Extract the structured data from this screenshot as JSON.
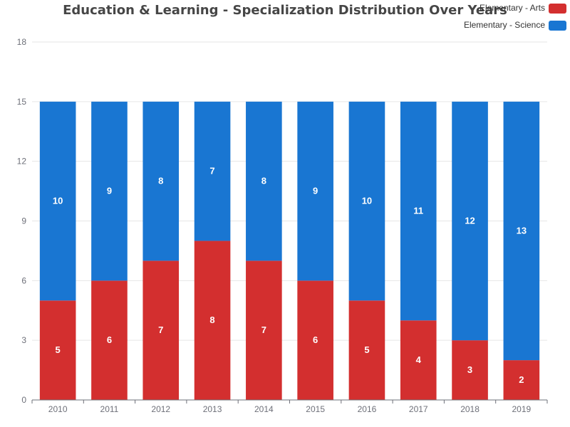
{
  "chart_data": {
    "type": "bar",
    "stacked": true,
    "title": "Education & Learning - Specialization Distribution Over Years",
    "xlabel": "",
    "ylabel": "",
    "categories": [
      "2010",
      "2011",
      "2012",
      "2013",
      "2014",
      "2015",
      "2016",
      "2017",
      "2018",
      "2019"
    ],
    "series": [
      {
        "name": "Elementary - Arts",
        "color": "#d32f2f",
        "values": [
          5,
          6,
          7,
          8,
          7,
          6,
          5,
          4,
          3,
          2
        ]
      },
      {
        "name": "Elementary - Science",
        "color": "#1976d2",
        "values": [
          10,
          9,
          8,
          7,
          8,
          9,
          10,
          11,
          12,
          13
        ]
      }
    ],
    "ylim": [
      0,
      18
    ],
    "yticks": [
      0,
      3,
      6,
      9,
      12,
      15,
      18
    ],
    "grid": true,
    "legend_position": "top-right",
    "data_labels": true
  }
}
